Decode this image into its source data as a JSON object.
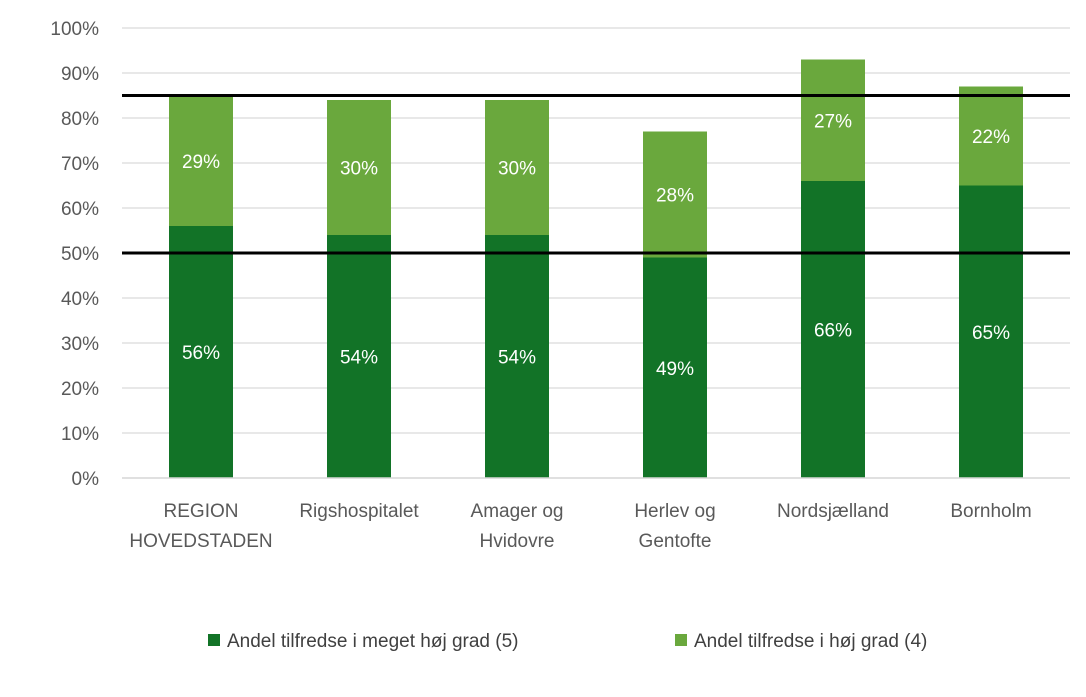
{
  "chart_data": {
    "type": "bar",
    "stacked": true,
    "categories": [
      [
        "REGION",
        "HOVEDSTADEN"
      ],
      [
        "Rigshospitalet"
      ],
      [
        "Amager og",
        "Hvidovre"
      ],
      [
        "Herlev og",
        "Gentofte"
      ],
      [
        "Nordsjælland"
      ],
      [
        "Bornholm"
      ]
    ],
    "series": [
      {
        "name": "Andel tilfredse i meget høj grad (5)",
        "color": "#127327",
        "values": [
          56,
          54,
          54,
          49,
          66,
          65
        ],
        "labels": [
          "56%",
          "54%",
          "54%",
          "49%",
          "66%",
          "65%"
        ]
      },
      {
        "name": "Andel tilfredse i høj grad (4)",
        "color": "#6aa83d",
        "values": [
          29,
          30,
          30,
          28,
          27,
          22
        ],
        "labels": [
          "29%",
          "30%",
          "30%",
          "28%",
          "27%",
          "22%"
        ]
      }
    ],
    "y_ticks": [
      "0%",
      "10%",
      "20%",
      "30%",
      "40%",
      "50%",
      "60%",
      "70%",
      "80%",
      "90%",
      "100%"
    ],
    "ylim": [
      0,
      100
    ],
    "reference_lines": [
      50,
      85
    ],
    "grid": true,
    "legend_position": "bottom",
    "title": "",
    "xlabel": "",
    "ylabel": ""
  }
}
